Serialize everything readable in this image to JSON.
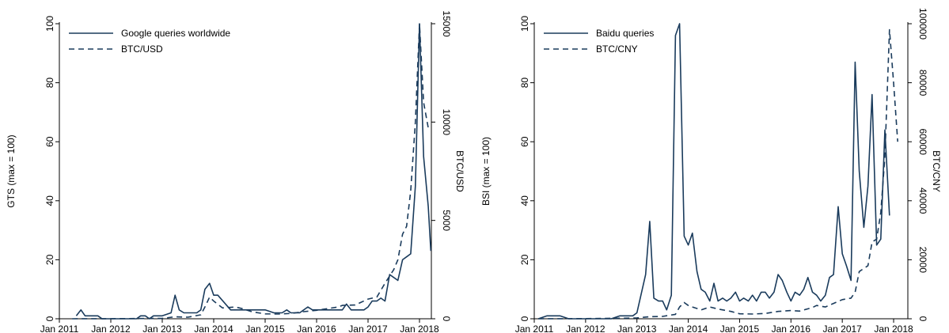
{
  "colors": {
    "series": "#1a3b5c",
    "axis": "#000000",
    "legend_border": "#a0a0a0"
  },
  "chart_data": [
    {
      "type": "line",
      "ylabel": "GTS (max = 100)",
      "y2label": "BTC/USD",
      "ylim": [
        0,
        100
      ],
      "y2lim": [
        0,
        15000
      ],
      "xlim": [
        2011.0,
        2018.0
      ],
      "xticks": [
        {
          "x": 2011.0,
          "label": "Jan 2011"
        },
        {
          "x": 2012.0,
          "label": "Jan 2012"
        },
        {
          "x": 2013.0,
          "label": "Jan 2013"
        },
        {
          "x": 2014.0,
          "label": "Jan 2014"
        },
        {
          "x": 2015.0,
          "label": "Jan 2015"
        },
        {
          "x": 2016.0,
          "label": "Jan 2016"
        },
        {
          "x": 2017.0,
          "label": "Jan 2017"
        },
        {
          "x": 2018.0,
          "label": "Jan 2018"
        }
      ],
      "yticks": [
        "0",
        "20",
        "40",
        "60",
        "80",
        "100"
      ],
      "y2ticks": [
        "0",
        "5000",
        "10000",
        "15000"
      ],
      "legend": [
        {
          "label": "Google queries worldwide",
          "style": "solid"
        },
        {
          "label": "BTC/USD",
          "style": "dashed"
        }
      ],
      "legend_position": "top-left",
      "grid": false,
      "series": [
        {
          "name": "Google queries worldwide",
          "axis": "left",
          "style": "solid",
          "points": [
            [
              2011.33,
              1
            ],
            [
              2011.42,
              3
            ],
            [
              2011.5,
              1
            ],
            [
              2011.75,
              1
            ],
            [
              2011.83,
              0
            ],
            [
              2012.5,
              0
            ],
            [
              2012.58,
              1
            ],
            [
              2012.67,
              1
            ],
            [
              2012.75,
              0
            ],
            [
              2012.83,
              1
            ],
            [
              2013.0,
              1
            ],
            [
              2013.17,
              2
            ],
            [
              2013.25,
              8
            ],
            [
              2013.33,
              3
            ],
            [
              2013.42,
              2
            ],
            [
              2013.67,
              2
            ],
            [
              2013.75,
              3
            ],
            [
              2013.83,
              10
            ],
            [
              2013.92,
              12
            ],
            [
              2014.0,
              8
            ],
            [
              2014.08,
              8
            ],
            [
              2014.33,
              3
            ],
            [
              2015.0,
              3
            ],
            [
              2015.17,
              2
            ],
            [
              2015.33,
              2
            ],
            [
              2015.42,
              3
            ],
            [
              2015.5,
              2
            ],
            [
              2015.67,
              2
            ],
            [
              2015.83,
              4
            ],
            [
              2015.92,
              3
            ],
            [
              2016.5,
              3
            ],
            [
              2016.58,
              5
            ],
            [
              2016.67,
              3
            ],
            [
              2016.92,
              3
            ],
            [
              2017.0,
              4
            ],
            [
              2017.08,
              6
            ],
            [
              2017.17,
              6
            ],
            [
              2017.25,
              7
            ],
            [
              2017.33,
              6
            ],
            [
              2017.42,
              15
            ],
            [
              2017.5,
              14
            ],
            [
              2017.58,
              13
            ],
            [
              2017.67,
              20
            ],
            [
              2017.75,
              21
            ],
            [
              2017.83,
              22
            ],
            [
              2017.92,
              45
            ],
            [
              2018.0,
              100
            ],
            [
              2018.08,
              55
            ],
            [
              2018.17,
              38
            ],
            [
              2018.22,
              23
            ]
          ]
        },
        {
          "name": "BTC/USD",
          "axis": "right",
          "style": "dashed",
          "points": [
            [
              2011.25,
              0
            ],
            [
              2012.0,
              5
            ],
            [
              2013.0,
              20
            ],
            [
              2013.25,
              100
            ],
            [
              2013.5,
              80
            ],
            [
              2013.75,
              200
            ],
            [
              2013.83,
              600
            ],
            [
              2013.92,
              1100
            ],
            [
              2014.0,
              900
            ],
            [
              2014.17,
              550
            ],
            [
              2014.42,
              600
            ],
            [
              2014.58,
              500
            ],
            [
              2014.75,
              350
            ],
            [
              2015.0,
              250
            ],
            [
              2015.25,
              240
            ],
            [
              2015.5,
              270
            ],
            [
              2015.75,
              360
            ],
            [
              2016.0,
              430
            ],
            [
              2016.42,
              600
            ],
            [
              2016.5,
              680
            ],
            [
              2016.75,
              700
            ],
            [
              2017.0,
              1000
            ],
            [
              2017.17,
              1100
            ],
            [
              2017.33,
              1800
            ],
            [
              2017.5,
              2500
            ],
            [
              2017.58,
              3000
            ],
            [
              2017.67,
              4300
            ],
            [
              2017.75,
              4700
            ],
            [
              2017.83,
              6500
            ],
            [
              2017.92,
              10000
            ],
            [
              2018.0,
              15000
            ],
            [
              2018.08,
              11000
            ],
            [
              2018.17,
              9700
            ],
            [
              2018.22,
              9800
            ]
          ]
        }
      ]
    },
    {
      "type": "line",
      "ylabel": "BSI (max = 100)",
      "y2label": "BTC/CNY",
      "ylim": [
        0,
        100
      ],
      "y2lim": [
        0,
        100000
      ],
      "xlim": [
        2011.0,
        2018.0
      ],
      "xticks": [
        {
          "x": 2011.0,
          "label": "Jan 2011"
        },
        {
          "x": 2012.0,
          "label": "Jan 2012"
        },
        {
          "x": 2013.0,
          "label": "Jan 2013"
        },
        {
          "x": 2014.0,
          "label": "Jan 2014"
        },
        {
          "x": 2015.0,
          "label": "Jan 2015"
        },
        {
          "x": 2016.0,
          "label": "Jan 2016"
        },
        {
          "x": 2017.0,
          "label": "Jan 2017"
        },
        {
          "x": 2018.0,
          "label": "Jan 2018"
        }
      ],
      "yticks": [
        "0",
        "20",
        "40",
        "60",
        "80",
        "100"
      ],
      "y2ticks": [
        "0",
        "20000",
        "40000",
        "60000",
        "80000",
        "100000"
      ],
      "legend": [
        {
          "label": "Baidu queries",
          "style": "solid"
        },
        {
          "label": "BTC/CNY",
          "style": "dashed"
        }
      ],
      "legend_position": "top-left",
      "grid": false,
      "series": [
        {
          "name": "Baidu queries",
          "axis": "left",
          "style": "solid",
          "points": [
            [
              2011.08,
              0
            ],
            [
              2011.25,
              1
            ],
            [
              2011.5,
              1
            ],
            [
              2011.67,
              0
            ],
            [
              2012.5,
              0
            ],
            [
              2012.67,
              1
            ],
            [
              2012.92,
              1
            ],
            [
              2013.0,
              2
            ],
            [
              2013.17,
              15
            ],
            [
              2013.25,
              33
            ],
            [
              2013.33,
              7
            ],
            [
              2013.42,
              6
            ],
            [
              2013.5,
              6
            ],
            [
              2013.58,
              3
            ],
            [
              2013.67,
              8
            ],
            [
              2013.75,
              96
            ],
            [
              2013.83,
              100
            ],
            [
              2013.92,
              28
            ],
            [
              2014.0,
              25
            ],
            [
              2014.08,
              29
            ],
            [
              2014.17,
              16
            ],
            [
              2014.25,
              10
            ],
            [
              2014.33,
              9
            ],
            [
              2014.42,
              6
            ],
            [
              2014.5,
              12
            ],
            [
              2014.58,
              6
            ],
            [
              2014.67,
              7
            ],
            [
              2014.75,
              6
            ],
            [
              2014.83,
              7
            ],
            [
              2014.92,
              9
            ],
            [
              2015.0,
              6
            ],
            [
              2015.08,
              7
            ],
            [
              2015.17,
              6
            ],
            [
              2015.25,
              8
            ],
            [
              2015.33,
              6
            ],
            [
              2015.42,
              9
            ],
            [
              2015.5,
              9
            ],
            [
              2015.58,
              7
            ],
            [
              2015.67,
              9
            ],
            [
              2015.75,
              15
            ],
            [
              2015.83,
              13
            ],
            [
              2015.92,
              9
            ],
            [
              2016.0,
              6
            ],
            [
              2016.08,
              9
            ],
            [
              2016.17,
              8
            ],
            [
              2016.25,
              10
            ],
            [
              2016.33,
              14
            ],
            [
              2016.42,
              9
            ],
            [
              2016.5,
              8
            ],
            [
              2016.58,
              6
            ],
            [
              2016.67,
              8
            ],
            [
              2016.75,
              14
            ],
            [
              2016.83,
              15
            ],
            [
              2016.92,
              38
            ],
            [
              2017.0,
              22
            ],
            [
              2017.08,
              18
            ],
            [
              2017.17,
              13
            ],
            [
              2017.25,
              87
            ],
            [
              2017.33,
              50
            ],
            [
              2017.42,
              31
            ],
            [
              2017.5,
              45
            ],
            [
              2017.58,
              76
            ],
            [
              2017.67,
              25
            ],
            [
              2017.75,
              27
            ],
            [
              2017.83,
              64
            ],
            [
              2017.92,
              35
            ]
          ]
        },
        {
          "name": "BTC/CNY",
          "axis": "right",
          "style": "dashed",
          "points": [
            [
              2011.08,
              0
            ],
            [
              2012.0,
              50
            ],
            [
              2012.75,
              200
            ],
            [
              2013.0,
              300
            ],
            [
              2013.25,
              700
            ],
            [
              2013.5,
              800
            ],
            [
              2013.75,
              1500
            ],
            [
              2013.83,
              4000
            ],
            [
              2013.92,
              5500
            ],
            [
              2014.0,
              4500
            ],
            [
              2014.08,
              4000
            ],
            [
              2014.25,
              3000
            ],
            [
              2014.42,
              4000
            ],
            [
              2014.58,
              3300
            ],
            [
              2014.83,
              2500
            ],
            [
              2015.0,
              1700
            ],
            [
              2015.25,
              1600
            ],
            [
              2015.5,
              1800
            ],
            [
              2015.75,
              2500
            ],
            [
              2016.0,
              2800
            ],
            [
              2016.17,
              2600
            ],
            [
              2016.42,
              3800
            ],
            [
              2016.5,
              4500
            ],
            [
              2016.67,
              4000
            ],
            [
              2016.83,
              5200
            ],
            [
              2017.0,
              6500
            ],
            [
              2017.17,
              7000
            ],
            [
              2017.25,
              9000
            ],
            [
              2017.33,
              16000
            ],
            [
              2017.5,
              18000
            ],
            [
              2017.58,
              26000
            ],
            [
              2017.67,
              27000
            ],
            [
              2017.75,
              36000
            ],
            [
              2017.83,
              55000
            ],
            [
              2017.92,
              98000
            ],
            [
              2018.0,
              80000
            ],
            [
              2018.08,
              60000
            ]
          ]
        }
      ]
    }
  ]
}
